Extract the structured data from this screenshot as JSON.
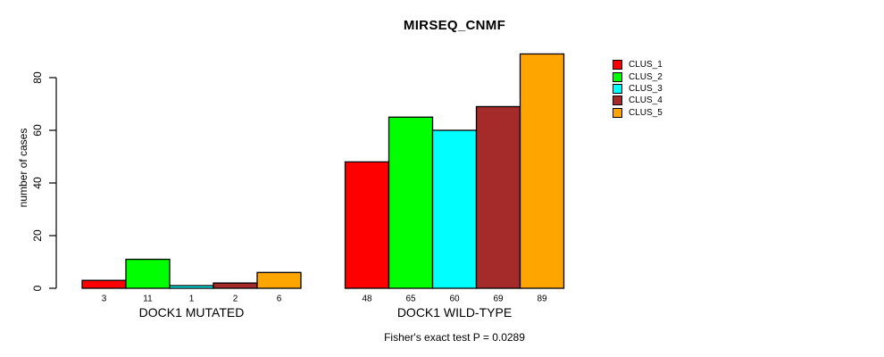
{
  "title": "MIRSEQ_CNMF",
  "chart_data": {
    "type": "bar",
    "title": "MIRSEQ_CNMF",
    "ylabel": "number of cases",
    "xlabel": "",
    "categories": [
      "DOCK1 MUTATED",
      "DOCK1 WILD-TYPE"
    ],
    "series": [
      {
        "name": "CLUS_1",
        "color": "#FF0000",
        "values": [
          3,
          48
        ]
      },
      {
        "name": "CLUS_2",
        "color": "#00FF00",
        "values": [
          11,
          65
        ]
      },
      {
        "name": "CLUS_3",
        "color": "#00FFFF",
        "values": [
          1,
          60
        ]
      },
      {
        "name": "CLUS_4",
        "color": "#A52A2A",
        "values": [
          2,
          69
        ]
      },
      {
        "name": "CLUS_5",
        "color": "#FFA500",
        "values": [
          6,
          89
        ]
      }
    ],
    "yticks": [
      0,
      20,
      40,
      60,
      80
    ],
    "ylim": [
      0,
      89
    ],
    "grid": false,
    "show_bar_values": true,
    "legend_position": "right",
    "annotation": "Fisher's exact test P = 0.0289",
    "bar_border_color": "#000000",
    "axis_color": "#000000",
    "background_color": "#FFFFFF"
  }
}
